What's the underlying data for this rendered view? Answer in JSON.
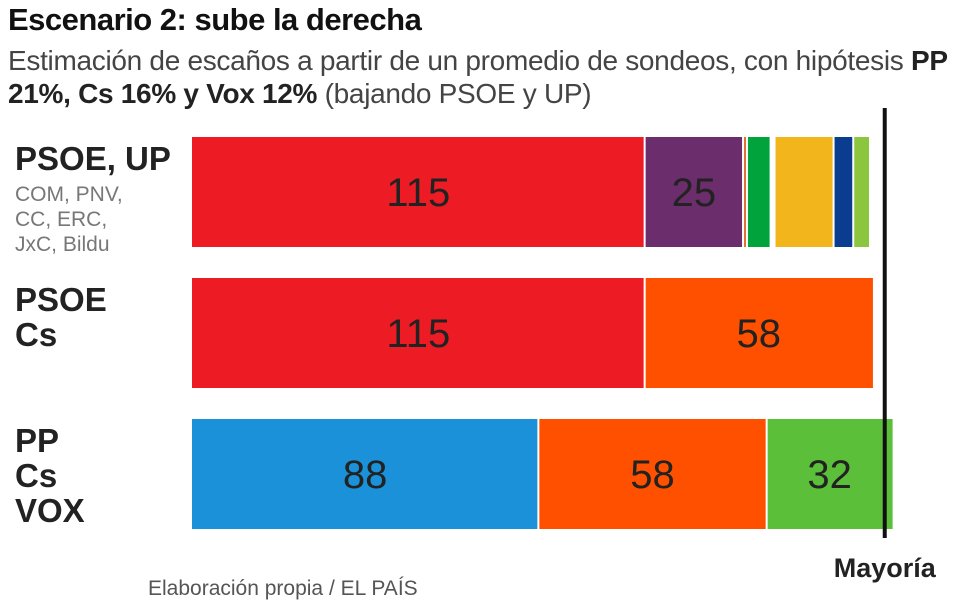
{
  "header": {
    "title": "Escenario 2: sube la derecha",
    "subtitle_prefix": "Estimación de escaños a partir de un promedio de sondeos, con hipótesis ",
    "subtitle_bold": "PP 21%, Cs 16% y Vox 12%",
    "subtitle_suffix": " (bajando PSOE y UP)"
  },
  "footer": {
    "source": "Elaboración propia / EL PAÍS"
  },
  "chart_data": {
    "type": "bar",
    "orientation": "horizontal",
    "stacked": true,
    "xlim": [
      0,
      210
    ],
    "reference_line": {
      "value": 176,
      "label": "Mayoría"
    },
    "rows": [
      {
        "label_lines": [
          "PSOE, UP"
        ],
        "sublabel_lines": [
          "COM, PNV,",
          "CC, ERC,",
          "JxC, Bildu"
        ],
        "segments": [
          {
            "party": "PSOE",
            "value": 115,
            "label": "115",
            "color": "#ed1c24"
          },
          {
            "party": "UP",
            "value": 25,
            "label": "25",
            "color": "#6b2d6b"
          },
          {
            "party": "COM",
            "value": 1,
            "label": "",
            "color": "#e06c2c"
          },
          {
            "party": "PNV",
            "value": 6,
            "label": "",
            "color": "#00a33c"
          },
          {
            "party": "CC",
            "value": 1,
            "label": "",
            "color": "#ffffff"
          },
          {
            "party": "ERC",
            "value": 15,
            "label": "",
            "color": "#f2b51c"
          },
          {
            "party": "JxC",
            "value": 5,
            "label": "",
            "color": "#0a3d8f"
          },
          {
            "party": "Bildu",
            "value": 4,
            "label": "",
            "color": "#8cc63f"
          }
        ]
      },
      {
        "label_lines": [
          "PSOE",
          "Cs"
        ],
        "sublabel_lines": [],
        "segments": [
          {
            "party": "PSOE",
            "value": 115,
            "label": "115",
            "color": "#ed1c24"
          },
          {
            "party": "Cs",
            "value": 58,
            "label": "58",
            "color": "#ff5000"
          }
        ]
      },
      {
        "label_lines": [
          "PP",
          "Cs",
          "VOX"
        ],
        "sublabel_lines": [],
        "segments": [
          {
            "party": "PP",
            "value": 88,
            "label": "88",
            "color": "#1a91d8"
          },
          {
            "party": "Cs",
            "value": 58,
            "label": "58",
            "color": "#ff5000"
          },
          {
            "party": "VOX",
            "value": 32,
            "label": "32",
            "color": "#5bbf3a"
          }
        ]
      }
    ]
  }
}
